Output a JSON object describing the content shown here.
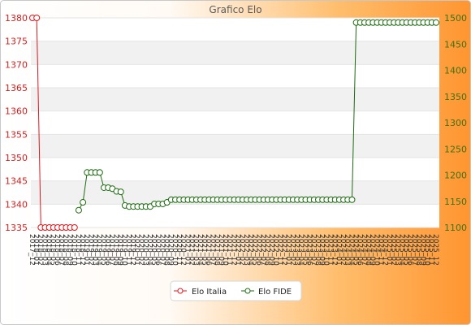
{
  "chart_data": {
    "type": "line",
    "title": "Grafico Elo",
    "x": [
      "2017_12",
      "2018_01",
      "2018_02",
      "2018_03",
      "2018_04",
      "2018_05",
      "2018_06",
      "2018_07",
      "2018_08",
      "2018_09",
      "2018_10",
      "2018_11",
      "2018_12",
      "2019_01",
      "2019_02",
      "2019_03",
      "2019_04",
      "2019_05",
      "2019_06",
      "2019_07",
      "2019_08",
      "2019_09",
      "2019_10",
      "2019_11",
      "2019_12",
      "2020_01",
      "2020_02",
      "2020_03",
      "2020_04",
      "2020_05",
      "2020_06",
      "2020_07",
      "2020_08",
      "2020_09",
      "2020_10",
      "2020_11",
      "2020_12",
      "2021_01",
      "2021_02",
      "2021_03",
      "2021_04",
      "2021_05",
      "2021_06",
      "2021_07",
      "2021_08",
      "2021_09",
      "2021_10",
      "2021_11",
      "2021_12",
      "2022_01",
      "2022_02",
      "2022_03",
      "2022_04",
      "2022_05",
      "2022_06",
      "2022_07",
      "2022_08",
      "2022_09",
      "2022_10",
      "2022_11",
      "2022_12",
      "2023_01",
      "2023_02",
      "2023_03",
      "2023_04",
      "2023_05",
      "2023_06",
      "2023_07",
      "2023_08",
      "2023_09",
      "2023_10",
      "2023_11",
      "2023_12",
      "2024_01",
      "2024_02",
      "2024_03",
      "2024_04",
      "2024_05",
      "2024_06",
      "2024_07",
      "2024_08",
      "2024_09",
      "2024_10",
      "2024_11",
      "2024_12",
      "2025_01",
      "2025_02",
      "2025_03",
      "2025_04",
      "2025_05",
      "2025_06",
      "2025_07",
      "2025_08",
      "2025_09",
      "2025_10",
      "2025_11",
      "2025_12"
    ],
    "series": [
      {
        "name": "Elo Italia",
        "y_axis": "left",
        "color": "#e0161b",
        "values": [
          1380,
          1380,
          1335,
          1335,
          1335,
          1335,
          1335,
          1335,
          1335,
          1335,
          1335,
          null,
          null,
          null,
          null,
          null,
          null,
          null,
          null,
          null,
          null,
          null,
          null,
          null,
          null,
          null,
          null,
          null,
          null,
          null,
          null,
          null,
          null,
          null,
          null,
          null,
          null,
          null,
          null,
          null,
          null,
          null,
          null,
          null,
          null,
          null,
          null,
          null,
          null,
          null,
          null,
          null,
          null,
          null,
          null,
          null,
          null,
          null,
          null,
          null,
          null,
          null,
          null,
          null,
          null,
          null,
          null,
          null,
          null,
          null,
          null,
          null,
          null,
          null,
          null,
          null,
          null,
          null,
          null,
          null,
          null,
          null,
          null,
          null,
          null,
          null,
          null,
          null,
          null,
          null,
          null,
          null,
          null,
          null,
          null,
          null,
          null
        ]
      },
      {
        "name": "Elo FIDE",
        "y_axis": "right",
        "color": "#1d6b10",
        "values": [
          null,
          null,
          null,
          null,
          null,
          null,
          null,
          null,
          null,
          null,
          null,
          1133,
          1148,
          1205,
          1205,
          1205,
          1205,
          1176,
          1176,
          1174,
          1169,
          1168,
          1142,
          1140,
          1140,
          1140,
          1140,
          1140,
          1140,
          1145,
          1145,
          1145,
          1148,
          1153,
          1153,
          1153,
          1153,
          1153,
          1153,
          1153,
          1153,
          1153,
          1153,
          1153,
          1153,
          1153,
          1153,
          1153,
          1153,
          1153,
          1153,
          1153,
          1153,
          1153,
          1153,
          1153,
          1153,
          1153,
          1153,
          1153,
          1153,
          1153,
          1153,
          1153,
          1153,
          1153,
          1153,
          1153,
          1153,
          1153,
          1153,
          1153,
          1153,
          1153,
          1153,
          1153,
          1153,
          1491,
          1491,
          1491,
          1491,
          1491,
          1491,
          1491,
          1491,
          1491,
          1491,
          1491,
          1491,
          1491,
          1491,
          1491,
          1491,
          1491,
          1491,
          1491,
          1491
        ]
      }
    ],
    "ylim_left": [
      1335,
      1380
    ],
    "ylim_right": [
      1100,
      1500
    ],
    "yticks_left": [
      1380,
      1375,
      1370,
      1365,
      1360,
      1355,
      1350,
      1345,
      1340,
      1335
    ],
    "yticks_right": [
      1500,
      1450,
      1400,
      1350,
      1300,
      1250,
      1200,
      1150,
      1100
    ],
    "grid": true,
    "legend": "bottom-center"
  },
  "colors": {
    "background_left": "#ffffff",
    "background_right": "#ff9530",
    "plot_background": "#ffffff",
    "plot_band": "#f1f1f1",
    "grid": "#e4e4e4",
    "axis_left_labels": "#d11f1f",
    "axis_right_labels": "#3d7314",
    "title": "#5a5a5a"
  }
}
